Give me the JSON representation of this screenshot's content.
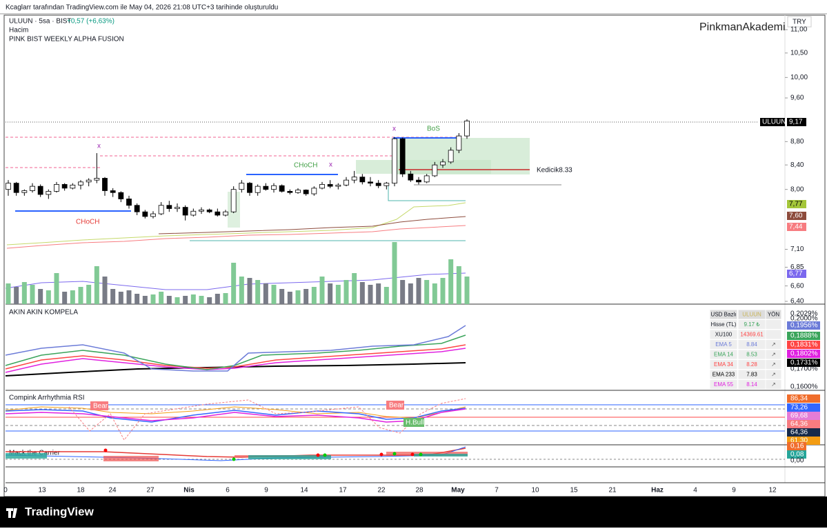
{
  "header": {
    "credit": "Kcaglarr tarafından TradingView.com ile May 04, 2026 21:08 UTC+3 tarihinde oluşturuldu",
    "symbol": "ULUUN · 5sa · BIST",
    "change": "+0,57 (+6,63%)",
    "volume_label": "Hacim",
    "indicator": "PINK BIST WEEKLY ALPHA FUSION",
    "watermark": "PinkmanAkademi",
    "currency": "TRY"
  },
  "chart_data": {
    "type": "candlestick",
    "log_scale": true,
    "ylim": [
      6.4,
      11.0
    ],
    "yticks": [
      {
        "value": 11.0,
        "label": "11,00"
      },
      {
        "value": 10.5,
        "label": "10,50"
      },
      {
        "value": 10.0,
        "label": "10,00"
      },
      {
        "value": 9.6,
        "label": "9,60"
      },
      {
        "value": 8.8,
        "label": "8,80"
      },
      {
        "value": 8.4,
        "label": "8,40"
      },
      {
        "value": 8.0,
        "label": "8,00"
      },
      {
        "value": 7.1,
        "label": "7,10"
      },
      {
        "value": 6.85,
        "label": "6,85"
      },
      {
        "value": 6.6,
        "label": "6,60"
      },
      {
        "value": 6.4,
        "label": "6,40"
      }
    ],
    "candles": [
      [
        8.0,
        8.15,
        7.9,
        8.1
      ],
      [
        8.1,
        8.12,
        7.9,
        7.95
      ],
      [
        7.95,
        8.0,
        7.9,
        7.98
      ],
      [
        7.98,
        8.1,
        7.95,
        8.05
      ],
      [
        8.05,
        8.08,
        7.88,
        7.92
      ],
      [
        7.92,
        8.0,
        7.85,
        7.97
      ],
      [
        7.97,
        8.12,
        7.95,
        8.08
      ],
      [
        8.08,
        8.1,
        7.98,
        8.02
      ],
      [
        8.02,
        8.1,
        8.0,
        8.07
      ],
      [
        8.07,
        8.15,
        8.0,
        8.12
      ],
      [
        8.12,
        8.18,
        8.05,
        8.15
      ],
      [
        8.15,
        8.6,
        8.1,
        8.18
      ],
      [
        8.18,
        8.2,
        7.9,
        7.98
      ],
      [
        7.98,
        8.02,
        7.88,
        7.95
      ],
      [
        7.95,
        7.97,
        7.8,
        7.85
      ],
      [
        7.85,
        7.9,
        7.7,
        7.75
      ],
      [
        7.75,
        7.78,
        7.6,
        7.65
      ],
      [
        7.65,
        7.68,
        7.55,
        7.58
      ],
      [
        7.58,
        7.66,
        7.55,
        7.62
      ],
      [
        7.62,
        7.8,
        7.6,
        7.75
      ],
      [
        7.75,
        7.82,
        7.65,
        7.7
      ],
      [
        7.7,
        7.78,
        7.65,
        7.72
      ],
      [
        7.72,
        7.75,
        7.52,
        7.6
      ],
      [
        7.6,
        7.7,
        7.58,
        7.66
      ],
      [
        7.66,
        7.72,
        7.62,
        7.68
      ],
      [
        7.68,
        7.7,
        7.63,
        7.65
      ],
      [
        7.65,
        7.7,
        7.58,
        7.6
      ],
      [
        7.6,
        7.68,
        7.58,
        7.65
      ],
      [
        7.65,
        8.05,
        7.63,
        8.0
      ],
      [
        8.0,
        8.15,
        7.95,
        8.1
      ],
      [
        8.1,
        8.12,
        7.9,
        7.95
      ],
      [
        7.95,
        8.08,
        7.9,
        8.05
      ],
      [
        8.05,
        8.1,
        7.98,
        8.0
      ],
      [
        8.0,
        8.1,
        7.95,
        8.06
      ],
      [
        8.06,
        8.08,
        7.95,
        7.97
      ],
      [
        7.97,
        8.0,
        7.92,
        7.95
      ],
      [
        7.95,
        8.02,
        7.93,
        7.99
      ],
      [
        7.99,
        8.0,
        7.9,
        7.93
      ],
      [
        7.93,
        8.05,
        7.9,
        8.02
      ],
      [
        8.02,
        8.12,
        8.0,
        8.08
      ],
      [
        8.08,
        8.15,
        8.02,
        8.05
      ],
      [
        8.05,
        8.1,
        8.0,
        8.07
      ],
      [
        8.07,
        8.2,
        8.05,
        8.15
      ],
      [
        8.15,
        8.3,
        8.1,
        8.2
      ],
      [
        8.2,
        8.25,
        8.08,
        8.12
      ],
      [
        8.12,
        8.2,
        8.05,
        8.1
      ],
      [
        8.1,
        8.15,
        8.02,
        8.06
      ],
      [
        8.06,
        8.12,
        8.0,
        8.1
      ],
      [
        8.1,
        8.88,
        8.05,
        8.85
      ],
      [
        8.85,
        8.87,
        8.2,
        8.25
      ],
      [
        8.25,
        8.3,
        8.12,
        8.15
      ],
      [
        8.15,
        8.2,
        8.08,
        8.12
      ],
      [
        8.12,
        8.25,
        8.1,
        8.22
      ],
      [
        8.22,
        8.45,
        8.2,
        8.4
      ],
      [
        8.4,
        8.5,
        8.35,
        8.45
      ],
      [
        8.45,
        8.7,
        8.42,
        8.65
      ],
      [
        8.65,
        8.95,
        8.6,
        8.9
      ],
      [
        8.9,
        9.2,
        8.85,
        9.17
      ]
    ],
    "volumes": [
      30,
      25,
      32,
      28,
      22,
      20,
      45,
      18,
      20,
      25,
      28,
      55,
      40,
      22,
      18,
      20,
      15,
      12,
      14,
      18,
      12,
      10,
      12,
      14,
      12,
      10,
      15,
      16,
      60,
      40,
      38,
      35,
      30,
      28,
      22,
      18,
      20,
      22,
      25,
      40,
      30,
      28,
      35,
      45,
      32,
      28,
      30,
      25,
      90,
      35,
      30,
      38,
      35,
      30,
      38,
      65,
      55,
      40
    ],
    "up_color": "#ffffff",
    "down_color": "#000000",
    "volume_up_color": "#81c995",
    "volume_down_color": "#787b86"
  },
  "labels": {
    "x1": "x",
    "x2": "x",
    "x3": "x",
    "bos": "BoS",
    "choch1": "CHoCH",
    "choch2": "CHoCH",
    "kedicik": "Kedicik8.33"
  },
  "price_tags": {
    "last_symbol": "ULUUN",
    "last": "9,17",
    "t1": "7,77",
    "t2": "7,60",
    "t3": "7,44",
    "t4": "6,77"
  },
  "panels": {
    "kompela": {
      "title": "AKIN AKIN KOMPELA",
      "axis": [
        "0,2029%",
        "0,2000%",
        "0,1956%",
        "0,1888%",
        "0,1831%",
        "0,1802%",
        "0,1731%",
        "0,1700%",
        "0,1600%"
      ]
    },
    "rsi": {
      "title": "Compink Arrhythmia RSI",
      "bear1": "Bear",
      "bear2": "Bear",
      "hbull": "H.Bull",
      "axis": [
        "86,34",
        "73,26",
        "69,68",
        "64,36",
        "64,36",
        "61,30"
      ]
    },
    "mack": {
      "title": "Mack the Carrier",
      "axis": [
        "0,16",
        "0,08",
        "0,00"
      ]
    }
  },
  "table": {
    "rows": [
      [
        "USD Bazlı",
        "ULUUN",
        "YÖN"
      ],
      [
        "Hisse (TL)",
        "9.17 ₺"
      ],
      [
        "XU100",
        "14369.61"
      ],
      [
        "EMA 5",
        "8.84",
        "↗"
      ],
      [
        "EMA 14",
        "8.53",
        "↗"
      ],
      [
        "EMA 34",
        "8.28",
        "↗"
      ],
      [
        "EMA 233",
        "7.83",
        "↗"
      ],
      [
        "EMA 55",
        "8.14",
        "↗"
      ]
    ]
  },
  "time_axis": [
    "0",
    "13",
    "18",
    "24",
    "27",
    "Nis",
    "6",
    "9",
    "14",
    "17",
    "22",
    "28",
    "May",
    "7",
    "10",
    "15",
    "21",
    "Haz",
    "4",
    "9",
    "12"
  ],
  "brand": "TradingView"
}
